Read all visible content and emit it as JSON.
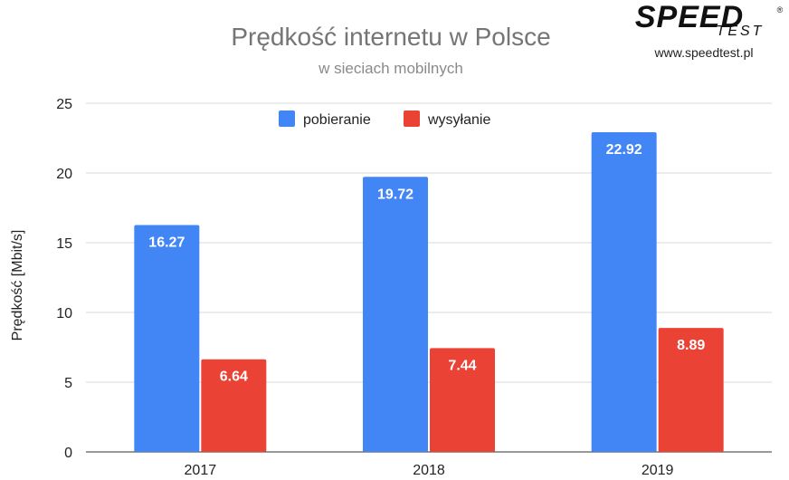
{
  "chart_data": {
    "type": "bar",
    "title": "Prędkość internetu w Polsce",
    "subtitle": "w sieciach mobilnych",
    "ylabel": "Prędkość [Mbit/s]",
    "xlabel": "",
    "categories": [
      "2017",
      "2018",
      "2019"
    ],
    "series": [
      {
        "name": "pobieranie",
        "color": "#4285f4",
        "values": [
          16.27,
          19.72,
          22.92
        ]
      },
      {
        "name": "wysyłanie",
        "color": "#ea4335",
        "values": [
          6.64,
          7.44,
          8.89
        ]
      }
    ],
    "ylim": [
      0,
      25
    ],
    "yticks": [
      0,
      5,
      10,
      15,
      20,
      25
    ],
    "grid": true,
    "legend": "top-center"
  },
  "brand": {
    "logo_text": "SPEED",
    "logo_sub": "TEST",
    "logo_mark": "®",
    "url": "www.speedtest.pl"
  }
}
